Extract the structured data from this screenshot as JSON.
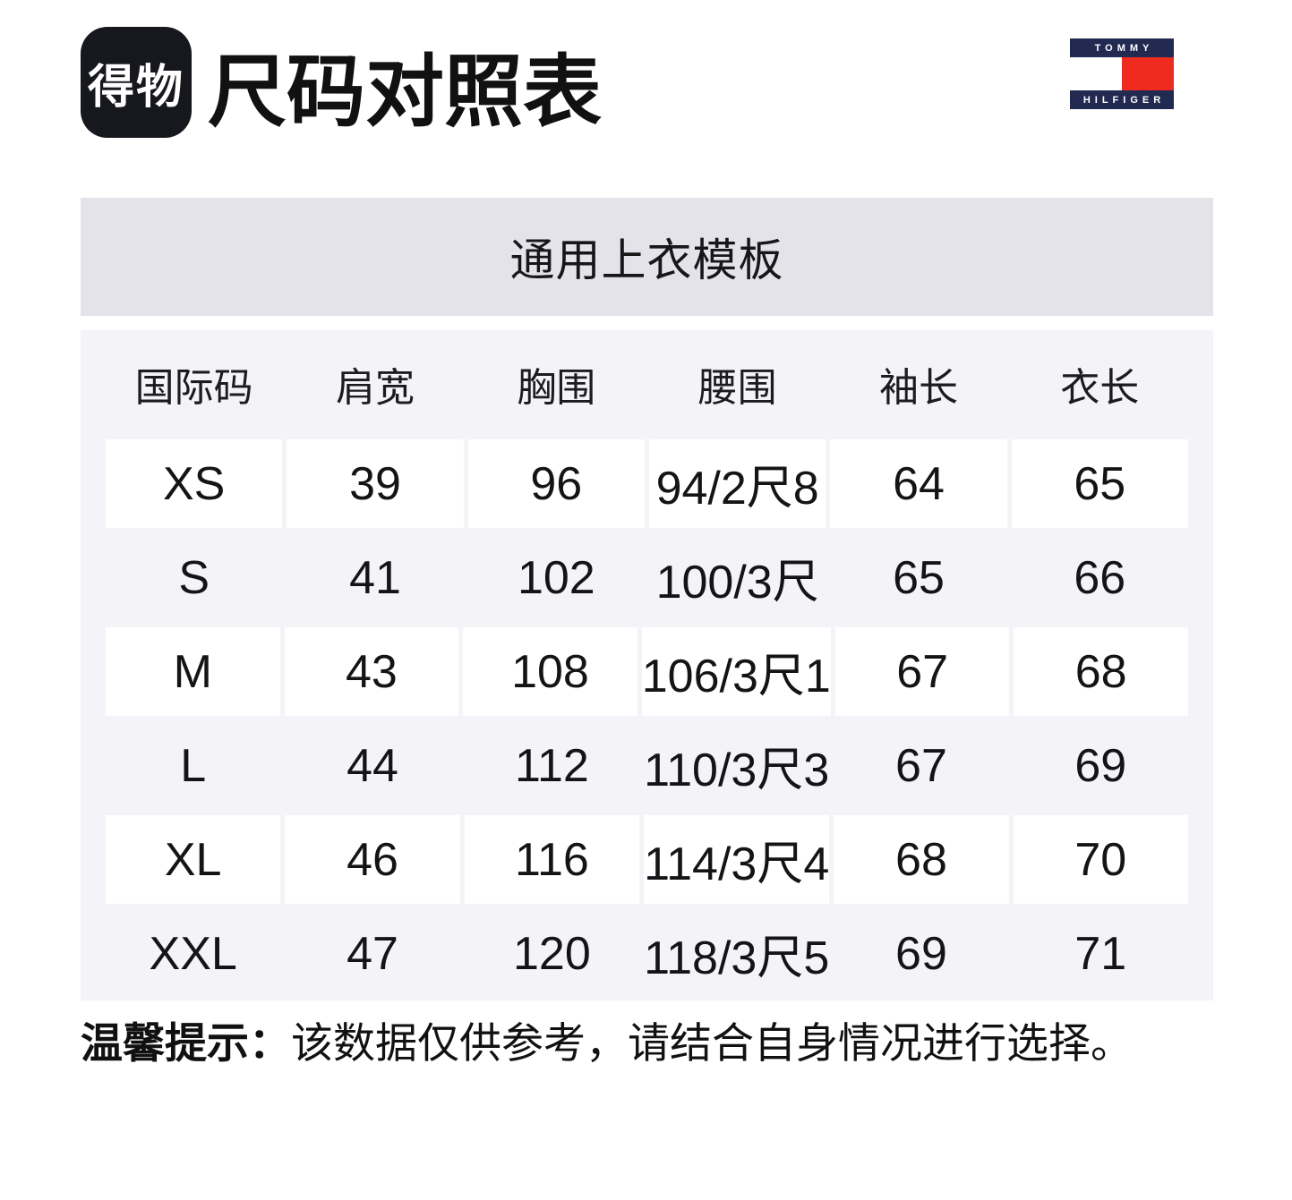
{
  "header": {
    "app_logo_text": "得物",
    "title": "尺码对照表",
    "brand_logo": {
      "top_text": "TOMMY",
      "bottom_text": "HILFIGER"
    }
  },
  "banner": {
    "title": "通用上衣模板"
  },
  "size_table": {
    "headers": [
      "国际码",
      "肩宽",
      "胸围",
      "腰围",
      "袖长",
      "衣长"
    ],
    "rows": [
      {
        "cells": [
          "XS",
          "39",
          "96",
          "94/2尺8",
          "64",
          "65"
        ]
      },
      {
        "cells": [
          "S",
          "41",
          "102",
          "100/3尺",
          "65",
          "66"
        ]
      },
      {
        "cells": [
          "M",
          "43",
          "108",
          "106/3尺1",
          "67",
          "68"
        ]
      },
      {
        "cells": [
          "L",
          "44",
          "112",
          "110/3尺3",
          "67",
          "69"
        ]
      },
      {
        "cells": [
          "XL",
          "46",
          "116",
          "114/3尺4",
          "68",
          "70"
        ]
      },
      {
        "cells": [
          "XXL",
          "47",
          "120",
          "118/3尺5",
          "69",
          "71"
        ]
      }
    ]
  },
  "footer_note": {
    "label": "温馨提示：",
    "text": "该数据仅供参考，请结合自身情况进行选择。"
  },
  "colors": {
    "dewu_logo_background": "#16181e",
    "banner_background": "#e4e3e9",
    "table_background": "#f4f4f8",
    "tommy_navy": "#222a52",
    "tommy_red": "#ee2b1e"
  }
}
